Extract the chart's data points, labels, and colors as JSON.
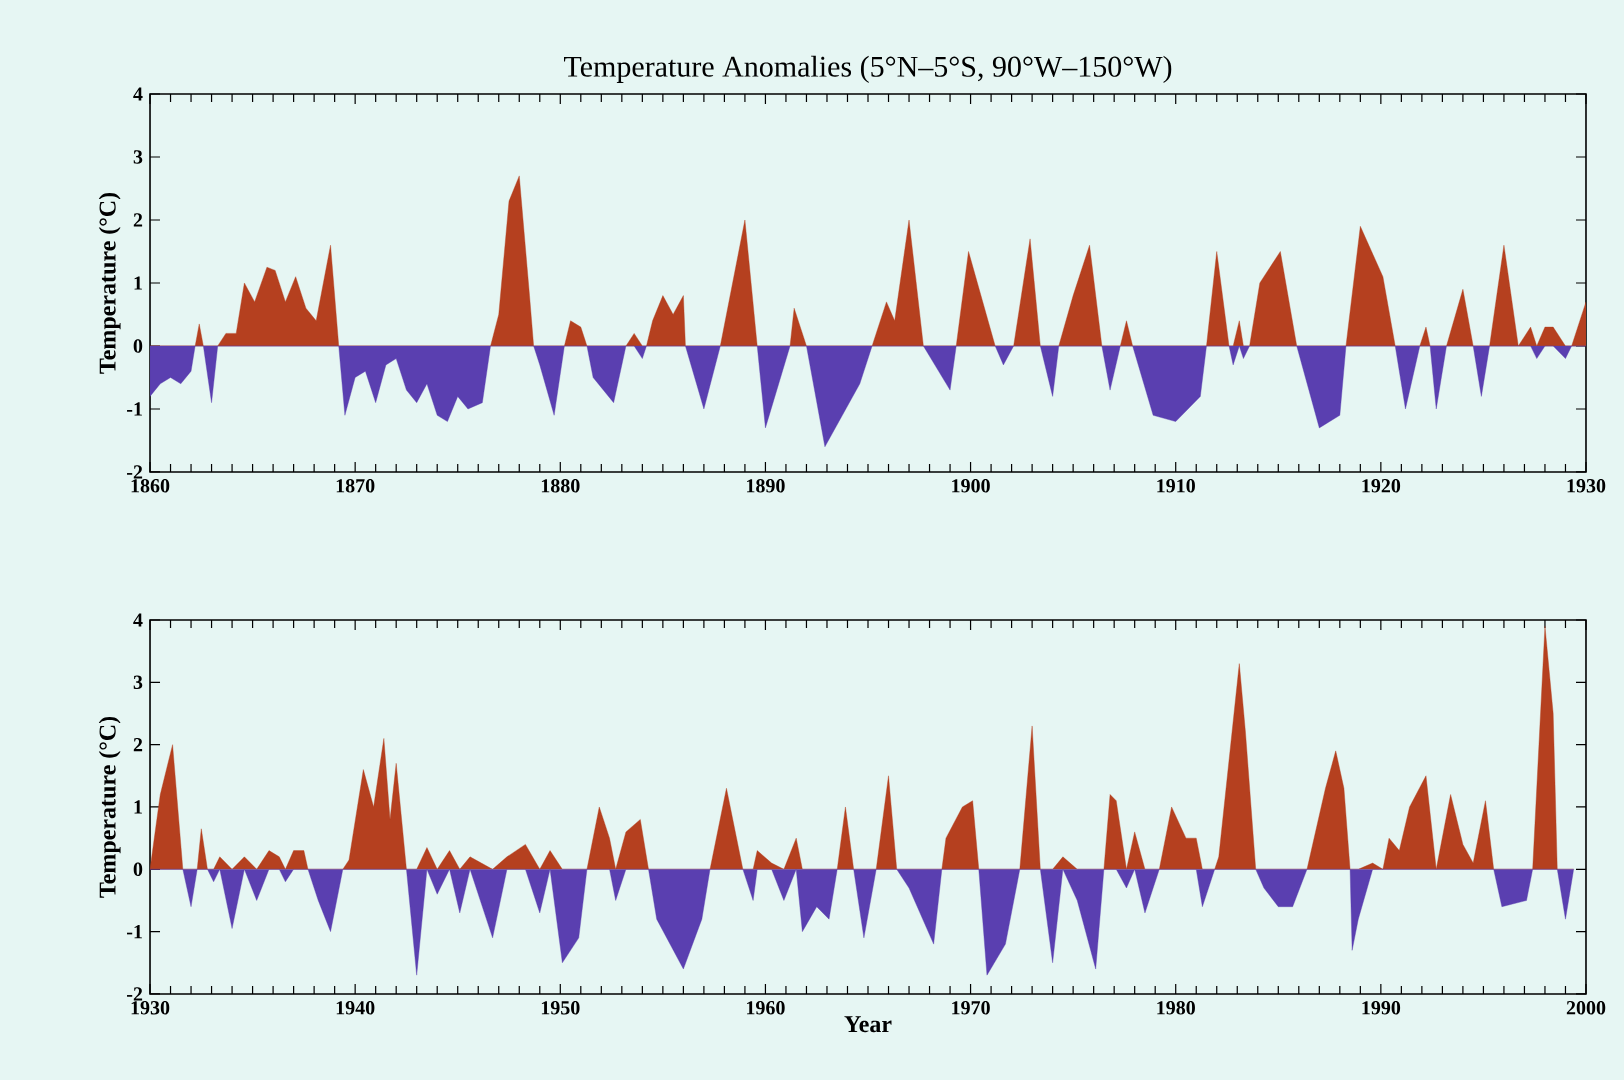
{
  "chart_data": [
    {
      "type": "area",
      "title": "Temperature Anomalies (5°N–5°S, 90°W–150°W)",
      "ylabel": "Temperature (°C)",
      "xlim": [
        1860,
        1930
      ],
      "xticks": [
        1860,
        1870,
        1880,
        1890,
        1900,
        1910,
        1920,
        1930
      ],
      "ylim": [
        -2,
        4
      ],
      "yticks": [
        -2,
        -1,
        0,
        1,
        2,
        3,
        4
      ],
      "x": [
        1860,
        1860.5,
        1861,
        1861.5,
        1862,
        1862.2,
        1862.4,
        1862.6,
        1863,
        1863.3,
        1863.7,
        1864.2,
        1864.6,
        1865.1,
        1865.7,
        1866.1,
        1866.6,
        1867.1,
        1867.6,
        1868.1,
        1868.8,
        1869.2,
        1869.5,
        1870,
        1870.5,
        1871,
        1871.5,
        1872,
        1872.5,
        1873,
        1873.5,
        1874,
        1874.5,
        1875,
        1875.5,
        1876.2,
        1876.6,
        1877,
        1877.5,
        1878,
        1878.5,
        1878.7,
        1879,
        1879.7,
        1880.2,
        1880.5,
        1881,
        1881.3,
        1881.6,
        1882.6,
        1883.2,
        1883.6,
        1884,
        1884.2,
        1884.5,
        1885,
        1885.5,
        1886,
        1886.1,
        1887,
        1887.8,
        1889,
        1889.6,
        1890,
        1891.2,
        1891.4,
        1892,
        1892.9,
        1894.6,
        1895.2,
        1895.9,
        1896.3,
        1897,
        1897.7,
        1899,
        1899.3,
        1899.9,
        1901.2,
        1901.6,
        1902.1,
        1902.9,
        1903.4,
        1904,
        1904.3,
        1905,
        1905.8,
        1906.4,
        1906.8,
        1907.3,
        1907.6,
        1907.9,
        1908.9,
        1910,
        1911.2,
        1911.5,
        1912,
        1912.6,
        1912.8,
        1913.1,
        1913.3,
        1913.6,
        1914.1,
        1915.1,
        1915.9,
        1917,
        1918,
        1918.3,
        1919,
        1920.1,
        1920.7,
        1921.2,
        1921.9,
        1922.2,
        1922.4,
        1922.7,
        1923.2,
        1924,
        1924.5,
        1924.9,
        1925.3,
        1926,
        1926.7,
        1927.3,
        1927.6,
        1928,
        1928.4,
        1929,
        1929.3,
        1930
      ],
      "series": [
        {
          "color": "#b5401f",
          "values": [
            0,
            0,
            0,
            0,
            0,
            0,
            0.35,
            0,
            0,
            0,
            0.2,
            0.2,
            1.0,
            0.7,
            1.25,
            1.2,
            0.7,
            1.1,
            0.6,
            0.4,
            1.6,
            0,
            0,
            0,
            0,
            0,
            0,
            0,
            0,
            0,
            0,
            0,
            0,
            0,
            0,
            0,
            0,
            0.5,
            2.3,
            2.7,
            0.8,
            0,
            0,
            0,
            0,
            0.4,
            0.3,
            0,
            0,
            0,
            0,
            0.2,
            0,
            0,
            0.4,
            0.8,
            0.5,
            0.8,
            0,
            0,
            0,
            2.0,
            0,
            0,
            0,
            0.6,
            0,
            0,
            0,
            0,
            0.7,
            0.4,
            2.0,
            0,
            0,
            0,
            1.5,
            0,
            0,
            0,
            1.7,
            0,
            0,
            0,
            0.8,
            1.6,
            0,
            0,
            0,
            0.4,
            0,
            0,
            0,
            0,
            0,
            1.5,
            0,
            0,
            0.4,
            0,
            0,
            1.0,
            1.5,
            0,
            0,
            0,
            0,
            1.9,
            1.1,
            0,
            0,
            0,
            0.3,
            0,
            0,
            0,
            0.9,
            0,
            0,
            0,
            1.6,
            0,
            0.3,
            0,
            0.3,
            0.3,
            0,
            0,
            0.7
          ]
        },
        {
          "color": "#5a3fb0",
          "values": [
            -0.8,
            -0.6,
            -0.5,
            -0.6,
            -0.4,
            0,
            0,
            0,
            -0.9,
            0,
            0,
            0,
            0,
            0,
            0,
            0,
            0,
            0,
            0,
            0,
            0,
            0,
            -1.1,
            -0.5,
            -0.4,
            -0.9,
            -0.3,
            -0.2,
            -0.7,
            -0.9,
            -0.6,
            -1.1,
            -1.2,
            -0.8,
            -1.0,
            -0.9,
            0,
            0,
            0,
            0,
            0,
            0,
            -0.3,
            -1.1,
            0,
            0,
            0,
            0,
            -0.5,
            -0.9,
            0,
            0,
            -0.2,
            0,
            0,
            0,
            0,
            0,
            0,
            -1.0,
            0,
            0,
            0,
            -1.3,
            0,
            0,
            0,
            -1.6,
            -0.6,
            0,
            0,
            0,
            0,
            0,
            -0.7,
            0,
            0,
            0,
            -0.3,
            0,
            0,
            0,
            -0.8,
            0,
            0,
            0,
            0,
            -0.7,
            0,
            0,
            0,
            -1.1,
            -1.2,
            -0.8,
            0,
            0,
            0,
            -0.3,
            0,
            -0.2,
            0,
            0,
            0,
            0,
            -1.3,
            -1.1,
            0,
            0,
            0,
            0,
            -1.0,
            0,
            0,
            0,
            -1.0,
            0,
            0,
            0,
            -0.8,
            0,
            0,
            0,
            0,
            -0.2,
            0,
            0,
            -0.2,
            0,
            0
          ]
        }
      ]
    },
    {
      "type": "area",
      "ylabel": "Temperature (°C)",
      "xlabel": "Year",
      "xlim": [
        1930,
        2000
      ],
      "xticks": [
        1930,
        1940,
        1950,
        1960,
        1970,
        1980,
        1990,
        2000
      ],
      "ylim": [
        -2,
        4
      ],
      "yticks": [
        -2,
        -1,
        0,
        1,
        2,
        3,
        4
      ],
      "x": [
        1930,
        1930.5,
        1931.1,
        1931.6,
        1932,
        1932.3,
        1932.5,
        1932.8,
        1933.1,
        1933.4,
        1934,
        1934.6,
        1935.2,
        1935.8,
        1936.3,
        1936.6,
        1937,
        1937.5,
        1937.7,
        1938.2,
        1938.8,
        1939.4,
        1939.7,
        1940.4,
        1940.9,
        1941.4,
        1941.7,
        1942,
        1942.5,
        1943,
        1943.5,
        1944,
        1944.6,
        1945.1,
        1945.6,
        1946.7,
        1947.4,
        1948.3,
        1949,
        1949.5,
        1950.1,
        1950.9,
        1951.3,
        1951.9,
        1952.4,
        1952.7,
        1953.2,
        1953.9,
        1954.3,
        1954.7,
        1956,
        1956.9,
        1957.3,
        1958.1,
        1958.9,
        1959.4,
        1959.6,
        1960.3,
        1960.9,
        1961.5,
        1961.8,
        1962.5,
        1963.1,
        1963.5,
        1963.9,
        1964.3,
        1964.8,
        1965.4,
        1966,
        1966.4,
        1967,
        1968.2,
        1968.6,
        1968.8,
        1969.6,
        1970.1,
        1970.4,
        1970.8,
        1971.7,
        1972.4,
        1973,
        1973.4,
        1974,
        1974.5,
        1975.2,
        1976.1,
        1976.5,
        1976.8,
        1977.1,
        1977.6,
        1978,
        1978.5,
        1979.2,
        1979.5,
        1979.8,
        1980.5,
        1981,
        1981.3,
        1981.9,
        1982.1,
        1983.1,
        1983.4,
        1983.9,
        1984.3,
        1985,
        1985.7,
        1986.4,
        1987.3,
        1987.8,
        1988.2,
        1988.5,
        1988.6,
        1988.9,
        1989.6,
        1990.1,
        1990.4,
        1990.9,
        1991.4,
        1992.2,
        1992.7,
        1993.4,
        1994,
        1994.5,
        1995.1,
        1995.5,
        1995.9,
        1997.1,
        1997.4,
        1998,
        1998.4,
        1998.6,
        1999,
        1999.4
      ],
      "series": [
        {
          "color": "#b5401f",
          "values": [
            0,
            1.2,
            2.0,
            0,
            0,
            0,
            0.65,
            0,
            0,
            0.2,
            0,
            0.2,
            0,
            0.3,
            0.2,
            0,
            0.3,
            0.3,
            0,
            0,
            0,
            0,
            0.15,
            1.6,
            1.0,
            2.1,
            0.8,
            1.7,
            0,
            0,
            0.35,
            0,
            0.3,
            0,
            0.2,
            0,
            0.2,
            0.4,
            0,
            0.3,
            0,
            0,
            0,
            1.0,
            0.5,
            0,
            0.6,
            0.8,
            0,
            0,
            0,
            0,
            0,
            1.3,
            0,
            0,
            0.3,
            0.1,
            0,
            0.5,
            0,
            0,
            0,
            0,
            1.0,
            0,
            0,
            0,
            1.5,
            0,
            0,
            0,
            0,
            0.5,
            1.0,
            1.1,
            0,
            0,
            0,
            0,
            2.3,
            0,
            0,
            0.2,
            0,
            0,
            0,
            1.2,
            1.1,
            0,
            0.6,
            0,
            0,
            0.5,
            1.0,
            0.5,
            0.5,
            0,
            0,
            0.2,
            3.3,
            2.2,
            0,
            0,
            0,
            0,
            0,
            1.3,
            1.9,
            1.3,
            0,
            0,
            0,
            0.1,
            0,
            0.5,
            0.3,
            1.0,
            1.5,
            0,
            1.2,
            0.4,
            0.1,
            1.1,
            0,
            0,
            0,
            0,
            3.9,
            2.5,
            0,
            0,
            0
          ]
        },
        {
          "color": "#5a3fb0",
          "values": [
            0,
            0,
            0,
            0,
            -0.6,
            0,
            0,
            0,
            -0.2,
            0,
            -0.95,
            0,
            -0.5,
            0,
            0,
            -0.2,
            0,
            0,
            0,
            -0.5,
            -1.0,
            0,
            0,
            0,
            0,
            0,
            0,
            0,
            0,
            -1.7,
            0,
            -0.4,
            0,
            -0.7,
            0,
            -1.1,
            0,
            0,
            -0.7,
            0,
            -1.5,
            -1.1,
            0,
            0,
            0,
            -0.5,
            0,
            0,
            0,
            -0.8,
            -1.6,
            -0.8,
            0,
            0,
            0,
            -0.5,
            0,
            0,
            -0.5,
            0,
            -1.0,
            -0.6,
            -0.8,
            0,
            0,
            0,
            -1.1,
            0,
            0,
            0,
            -0.3,
            -1.2,
            0,
            0,
            0,
            0,
            0,
            -1.7,
            -1.2,
            0,
            0,
            0,
            -1.5,
            0,
            -0.5,
            -1.6,
            0,
            0,
            0,
            -0.3,
            0,
            -0.7,
            0,
            0,
            0,
            0,
            0,
            -0.6,
            0,
            0,
            0,
            0,
            0,
            -0.3,
            -0.6,
            -0.6,
            0,
            0,
            0,
            0,
            0,
            -1.3,
            -0.8,
            0,
            0,
            0,
            0,
            0,
            0,
            0,
            0,
            0,
            0,
            0,
            0,
            -0.6,
            -0.5,
            0,
            0,
            0,
            0,
            -0.8,
            0
          ]
        }
      ]
    }
  ]
}
